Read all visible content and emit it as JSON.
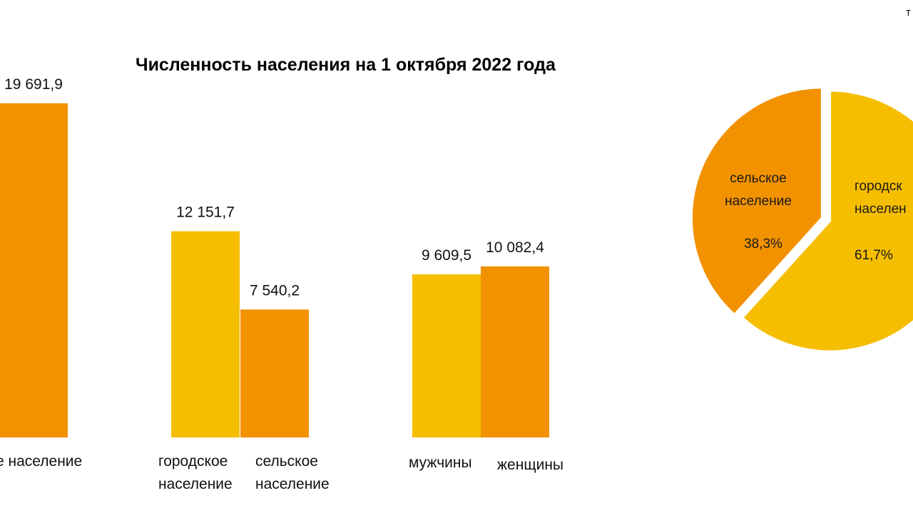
{
  "corner_text": "т",
  "title": "Численность населения на 1 октября  2022 года",
  "chart_data": [
    {
      "type": "bar",
      "bars": [
        {
          "category": "население",
          "value": 19691.9,
          "label": "19 691,9",
          "color": "#F39200"
        },
        {
          "category": "городское население",
          "value": 12151.7,
          "label": "12 151,7",
          "color": "#F5BE00"
        },
        {
          "category": "сельское население",
          "value": 7540.2,
          "label": "7 540,2",
          "color": "#F39200"
        },
        {
          "category": "мужчины",
          "value": 9609.5,
          "label": "9 609,5",
          "color": "#F5BE00"
        },
        {
          "category": "женщины",
          "value": 10082.4,
          "label": "10 082,4",
          "color": "#F39200"
        }
      ],
      "category_labels": [
        {
          "key": "total",
          "lines": [
            "е население"
          ]
        },
        {
          "key": "urban",
          "lines": [
            "городское",
            "население"
          ]
        },
        {
          "key": "rural",
          "lines": [
            "сельское",
            "население"
          ]
        },
        {
          "key": "men",
          "lines": [
            "мужчины"
          ]
        },
        {
          "key": "women",
          "lines": [
            "женщины"
          ]
        }
      ],
      "grid": false,
      "legend": "none"
    },
    {
      "type": "pie",
      "slices": [
        {
          "name": "сельское население",
          "name_lines": [
            "сельское",
            "население"
          ],
          "value": 38.3,
          "label": "38,3%",
          "color": "#F39200"
        },
        {
          "name": "городское население",
          "name_lines": [
            "городск",
            "населен"
          ],
          "value": 61.7,
          "label": "61,7%",
          "color": "#F5BE00"
        }
      ]
    }
  ]
}
